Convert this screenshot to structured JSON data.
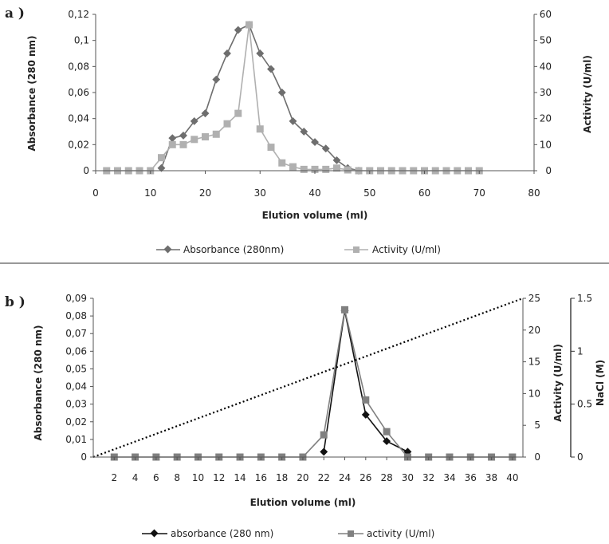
{
  "chart_data": [
    {
      "type": "line",
      "panel_label": "a )",
      "xlabel": "Elution volume (ml)",
      "ylabel": "Absorbance (280 nm)",
      "y2label": "Activity (U/ml)",
      "xlim": [
        0,
        80
      ],
      "ylim": [
        0,
        0.12
      ],
      "y2lim": [
        0,
        60
      ],
      "x_ticks": [
        "0",
        "10",
        "20",
        "30",
        "40",
        "50",
        "60",
        "70",
        "80"
      ],
      "y_ticks": [
        "0",
        "0,02",
        "0,04",
        "0,06",
        "0,08",
        "0,1",
        "0,12"
      ],
      "y2_ticks": [
        "0",
        "10",
        "20",
        "30",
        "40",
        "50",
        "60"
      ],
      "grid": false,
      "legend_position": "bottom",
      "series": [
        {
          "name": "Absorbance (280nm)",
          "axis": "left",
          "color": "#6e6e6e",
          "marker": "diamond",
          "x": [
            12,
            14,
            16,
            18,
            20,
            22,
            24,
            26,
            28,
            30,
            32,
            34,
            36,
            38,
            40,
            42,
            44,
            46,
            48
          ],
          "values": [
            0.002,
            0.025,
            0.027,
            0.038,
            0.044,
            0.07,
            0.09,
            0.108,
            0.112,
            0.09,
            0.078,
            0.06,
            0.038,
            0.03,
            0.022,
            0.017,
            0.008,
            0.002,
            0.0
          ]
        },
        {
          "name": "Activity (U/ml)",
          "axis": "right",
          "color": "#b0b0b0",
          "marker": "square",
          "x": [
            2,
            4,
            6,
            8,
            10,
            12,
            14,
            16,
            18,
            20,
            22,
            24,
            26,
            28,
            30,
            32,
            34,
            36,
            38,
            40,
            42,
            44,
            46,
            48,
            50,
            52,
            54,
            56,
            58,
            60,
            62,
            64,
            66,
            68,
            70
          ],
          "values": [
            0,
            0,
            0,
            0,
            0,
            5,
            10,
            10,
            12,
            13,
            14,
            18,
            22,
            56,
            16,
            9,
            3,
            1.5,
            0.5,
            0.5,
            0.5,
            1,
            0.3,
            0,
            0,
            0,
            0,
            0,
            0,
            0,
            0,
            0,
            0,
            0,
            0
          ]
        }
      ]
    },
    {
      "type": "line",
      "panel_label": "b )",
      "xlabel": "Elution volume (ml)",
      "ylabel": "Absorbance (280 nm)",
      "y2label": "Activity (U/ml)",
      "y3label": "NaCl (M)",
      "xlim": [
        0,
        41
      ],
      "ylim": [
        0,
        0.09
      ],
      "y2lim": [
        0,
        25
      ],
      "y3lim": [
        0,
        1.5
      ],
      "x_ticks": [
        "2",
        "4",
        "6",
        "8",
        "10",
        "12",
        "14",
        "16",
        "18",
        "20",
        "22",
        "24",
        "26",
        "28",
        "30",
        "32",
        "34",
        "36",
        "38",
        "40"
      ],
      "y_ticks": [
        "0",
        "0,01",
        "0,02",
        "0,03",
        "0,04",
        "0,05",
        "0,06",
        "0,07",
        "0,08",
        "0,09"
      ],
      "y2_ticks": [
        "0",
        "5",
        "10",
        "15",
        "20",
        "25"
      ],
      "y3_ticks": [
        "0",
        "0.5",
        "1",
        "1.5"
      ],
      "grid": false,
      "legend_position": "bottom",
      "series": [
        {
          "name": "absorbance (280 nm)",
          "axis": "left",
          "color": "#111111",
          "marker": "diamond",
          "x": [
            22,
            24,
            26,
            28,
            30
          ],
          "values": [
            0.003,
            0.083,
            0.024,
            0.009,
            0.003
          ]
        },
        {
          "name": "activity (U/ml)",
          "axis": "right",
          "color": "#808080",
          "marker": "square",
          "x": [
            2,
            4,
            6,
            8,
            10,
            12,
            14,
            16,
            18,
            20,
            22,
            24,
            26,
            28,
            30,
            32,
            34,
            36,
            38,
            40
          ],
          "values": [
            0,
            0,
            0,
            0,
            0,
            0,
            0,
            0,
            0,
            0,
            3.5,
            23.2,
            9,
            4,
            0,
            0,
            0,
            0,
            0,
            0
          ]
        },
        {
          "axis": "nacl",
          "style": "dotted",
          "color": "#000000",
          "x": [
            0,
            41
          ],
          "values": [
            0,
            1.5
          ]
        }
      ]
    }
  ]
}
